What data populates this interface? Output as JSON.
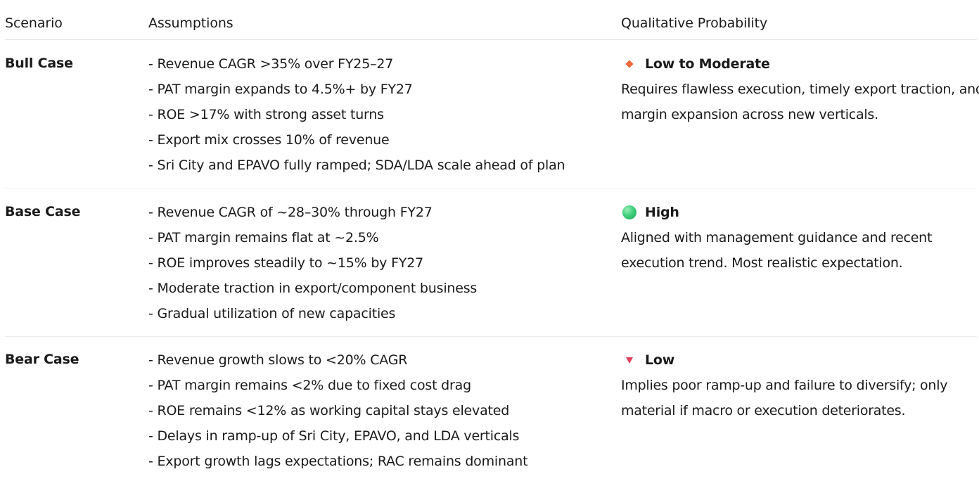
{
  "headers": {
    "scenario": "Scenario",
    "assumptions": "Assumptions",
    "probability": "Qualitative Probability"
  },
  "rows": [
    {
      "scenario": "Bull Case",
      "assumptions": [
        "- Revenue CAGR >35% over FY25–27",
        "- PAT margin expands to 4.5%+ by FY27",
        "- ROE >17% with strong asset turns",
        "- Export mix crosses 10% of revenue",
        "- Sri City and EPAVO fully ramped; SDA/LDA scale ahead of plan"
      ],
      "probability": {
        "icon": "orange-diamond-icon",
        "icon_color": "#f06a3a",
        "label": "Low to Moderate",
        "description": [
          "Requires flawless execution, timely export traction, and",
          "margin expansion across new verticals."
        ]
      }
    },
    {
      "scenario": "Base Case",
      "assumptions": [
        "- Revenue CAGR of ~28–30% through FY27",
        "- PAT margin remains flat at ~2.5%",
        "- ROE improves steadily to ~15% by FY27",
        "- Moderate traction in export/component business",
        "- Gradual utilization of new capacities"
      ],
      "probability": {
        "icon": "green-circle-icon",
        "icon_color": "#3fcf7a",
        "label": "High",
        "description": [
          "Aligned with management guidance and recent",
          "execution trend. Most realistic expectation."
        ]
      }
    },
    {
      "scenario": "Bear Case",
      "assumptions": [
        "- Revenue growth slows to <20% CAGR",
        "- PAT margin remains <2% due to fixed cost drag",
        "- ROE remains <12% as working capital stays elevated",
        "- Delays in ramp-up of Sri City, EPAVO, and LDA verticals",
        "- Export growth lags expectations; RAC remains dominant"
      ],
      "probability": {
        "icon": "red-down-triangle-icon",
        "icon_color": "#e0405e",
        "label": "Low",
        "description": [
          "Implies poor ramp-up and failure to diversify; only",
          "material if macro or execution deteriorates."
        ]
      }
    }
  ]
}
